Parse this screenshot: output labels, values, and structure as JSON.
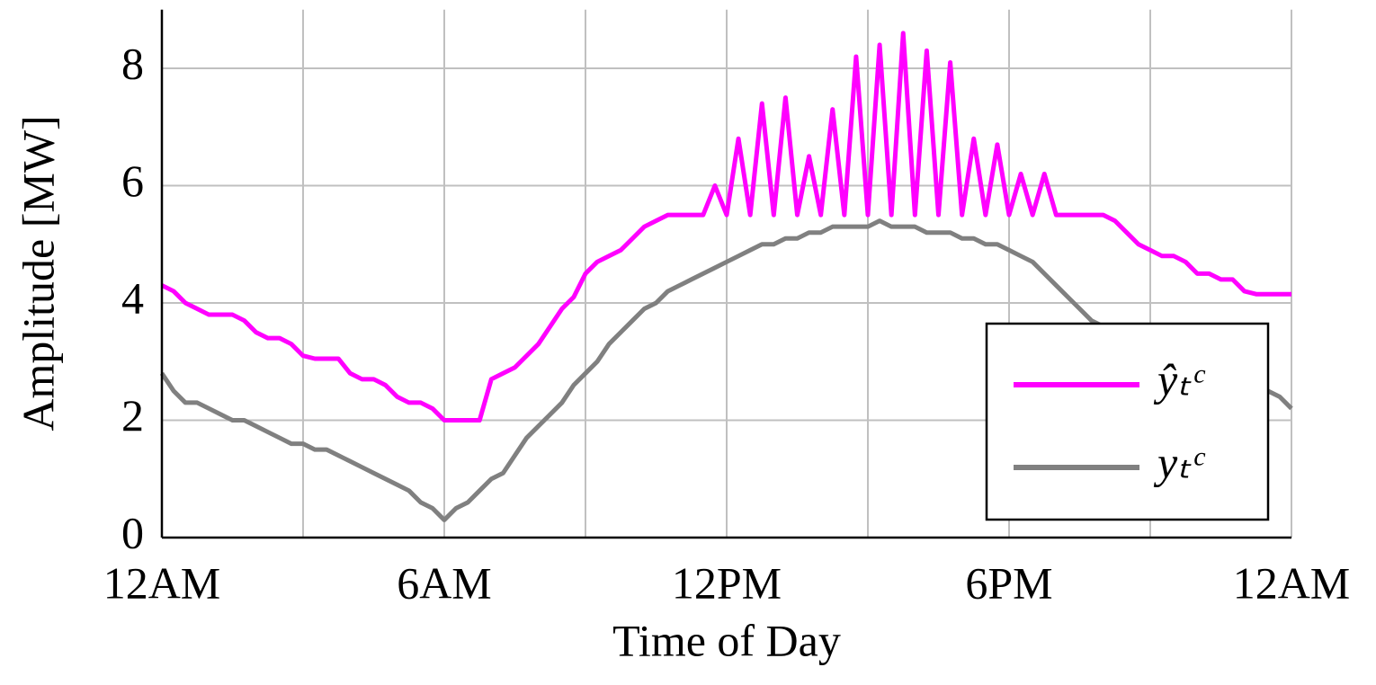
{
  "chart_data": {
    "type": "line",
    "xlabel": "Time of Day",
    "ylabel": "Amplitude [MW]",
    "x": [
      0,
      0.25,
      0.5,
      0.75,
      1,
      1.25,
      1.5,
      1.75,
      2,
      2.25,
      2.5,
      2.75,
      3,
      3.25,
      3.5,
      3.75,
      4,
      4.25,
      4.5,
      4.75,
      5,
      5.25,
      5.5,
      5.75,
      6,
      6.25,
      6.5,
      6.75,
      7,
      7.25,
      7.5,
      7.75,
      8,
      8.25,
      8.5,
      8.75,
      9,
      9.25,
      9.5,
      9.75,
      10,
      10.25,
      10.5,
      10.75,
      11,
      11.25,
      11.5,
      11.75,
      12,
      12.25,
      12.5,
      12.75,
      13,
      13.25,
      13.5,
      13.75,
      14,
      14.25,
      14.5,
      14.75,
      15,
      15.25,
      15.5,
      15.75,
      16,
      16.25,
      16.5,
      16.75,
      17,
      17.25,
      17.5,
      17.75,
      18,
      18.25,
      18.5,
      18.75,
      19,
      19.25,
      19.5,
      19.75,
      20,
      20.25,
      20.5,
      20.75,
      21,
      21.25,
      21.5,
      21.75,
      22,
      22.25,
      22.5,
      22.75,
      23,
      23.25,
      23.5,
      23.75,
      24
    ],
    "series": [
      {
        "name": "ŷₜᶜ",
        "color": "#ff00ff",
        "values": [
          4.3,
          4.2,
          4.0,
          3.9,
          3.8,
          3.8,
          3.8,
          3.7,
          3.5,
          3.4,
          3.4,
          3.3,
          3.1,
          3.05,
          3.05,
          3.05,
          2.8,
          2.7,
          2.7,
          2.6,
          2.4,
          2.3,
          2.3,
          2.2,
          2.0,
          2.0,
          2.0,
          2.0,
          2.7,
          2.8,
          2.9,
          3.1,
          3.3,
          3.6,
          3.9,
          4.1,
          4.5,
          4.7,
          4.8,
          4.9,
          5.1,
          5.3,
          5.4,
          5.5,
          5.5,
          5.5,
          5.5,
          6.0,
          5.5,
          6.8,
          5.5,
          7.4,
          5.5,
          7.5,
          5.5,
          6.5,
          5.5,
          7.3,
          5.5,
          8.2,
          5.5,
          8.4,
          5.5,
          8.6,
          5.5,
          8.3,
          5.5,
          8.1,
          5.5,
          6.8,
          5.5,
          6.7,
          5.5,
          6.2,
          5.5,
          6.2,
          5.5,
          5.5,
          5.5,
          5.5,
          5.5,
          5.4,
          5.2,
          5.0,
          4.9,
          4.8,
          4.8,
          4.7,
          4.5,
          4.5,
          4.4,
          4.4,
          4.2,
          4.15,
          4.15,
          4.15,
          4.15
        ]
      },
      {
        "name": "yₜᶜ",
        "color": "#808080",
        "values": [
          2.8,
          2.5,
          2.3,
          2.3,
          2.2,
          2.1,
          2.0,
          2.0,
          1.9,
          1.8,
          1.7,
          1.6,
          1.6,
          1.5,
          1.5,
          1.4,
          1.3,
          1.2,
          1.1,
          1.0,
          0.9,
          0.8,
          0.6,
          0.5,
          0.3,
          0.5,
          0.6,
          0.8,
          1.0,
          1.1,
          1.4,
          1.7,
          1.9,
          2.1,
          2.3,
          2.6,
          2.8,
          3.0,
          3.3,
          3.5,
          3.7,
          3.9,
          4.0,
          4.2,
          4.3,
          4.4,
          4.5,
          4.6,
          4.7,
          4.8,
          4.9,
          5.0,
          5.0,
          5.1,
          5.1,
          5.2,
          5.2,
          5.3,
          5.3,
          5.3,
          5.3,
          5.4,
          5.3,
          5.3,
          5.3,
          5.2,
          5.2,
          5.2,
          5.1,
          5.1,
          5.0,
          5.0,
          4.9,
          4.8,
          4.7,
          4.5,
          4.3,
          4.1,
          3.9,
          3.7,
          3.6,
          3.5,
          3.4,
          3.3,
          3.2,
          3.1,
          3.0,
          3.0,
          2.9,
          2.8,
          2.8,
          2.7,
          2.6,
          2.6,
          2.5,
          2.4,
          2.2
        ]
      }
    ],
    "xlim": [
      0,
      24
    ],
    "xticks": [
      {
        "value": 0,
        "label": "12AM"
      },
      {
        "value": 6,
        "label": "6AM"
      },
      {
        "value": 12,
        "label": "12PM"
      },
      {
        "value": 18,
        "label": "6PM"
      },
      {
        "value": 24,
        "label": "12AM"
      }
    ],
    "xminorticks": [
      3,
      9,
      15,
      21
    ],
    "ylim": [
      0,
      9
    ],
    "yticks": [
      0,
      2,
      4,
      6,
      8
    ],
    "grid": true,
    "legend": "lower right"
  }
}
